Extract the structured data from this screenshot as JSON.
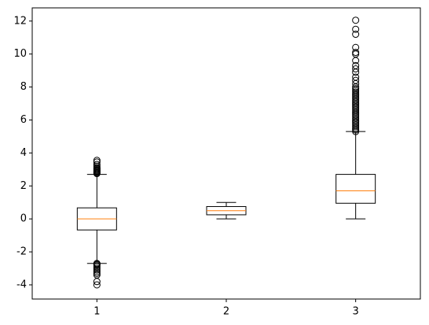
{
  "chart_data": {
    "type": "box",
    "categories": [
      "1",
      "2",
      "3"
    ],
    "xlim": [
      0.5,
      3.5
    ],
    "ylim": [
      -4.86,
      12.8
    ],
    "yticks": [
      -4,
      -2,
      0,
      2,
      4,
      6,
      8,
      10,
      12
    ],
    "box_color": "#000000",
    "median_color": "#ff7f0e",
    "series": [
      {
        "whisker_low": -2.7,
        "q1": -0.67,
        "median": 0,
        "q3": 0.67,
        "whisker_high": 2.7,
        "outliers": [
          2.75,
          2.8,
          2.85,
          2.9,
          2.95,
          3.0,
          3.05,
          3.1,
          3.2,
          3.3,
          3.45,
          3.55,
          -2.7,
          -2.75,
          -2.8,
          -2.9,
          -3.0,
          -3.1,
          -3.2,
          -3.3,
          -3.4,
          -3.8,
          -4.0
        ]
      },
      {
        "whisker_low": 0,
        "q1": 0.25,
        "median": 0.5,
        "q3": 0.75,
        "whisker_high": 1.0,
        "outliers": []
      },
      {
        "whisker_low": 0,
        "q1": 0.95,
        "median": 1.7,
        "q3": 2.7,
        "whisker_high": 5.3,
        "outliers": [
          5.3,
          5.4,
          5.5,
          5.6,
          5.7,
          5.8,
          5.9,
          6.0,
          6.1,
          6.2,
          6.3,
          6.4,
          6.5,
          6.6,
          6.7,
          6.8,
          6.9,
          7.0,
          7.1,
          7.2,
          7.3,
          7.4,
          7.5,
          7.6,
          7.7,
          7.8,
          7.9,
          8.0,
          8.2,
          8.4,
          8.6,
          8.9,
          9.1,
          9.3,
          9.6,
          10.0,
          10.1,
          10.4,
          11.2,
          11.5,
          12.05
        ]
      }
    ]
  }
}
